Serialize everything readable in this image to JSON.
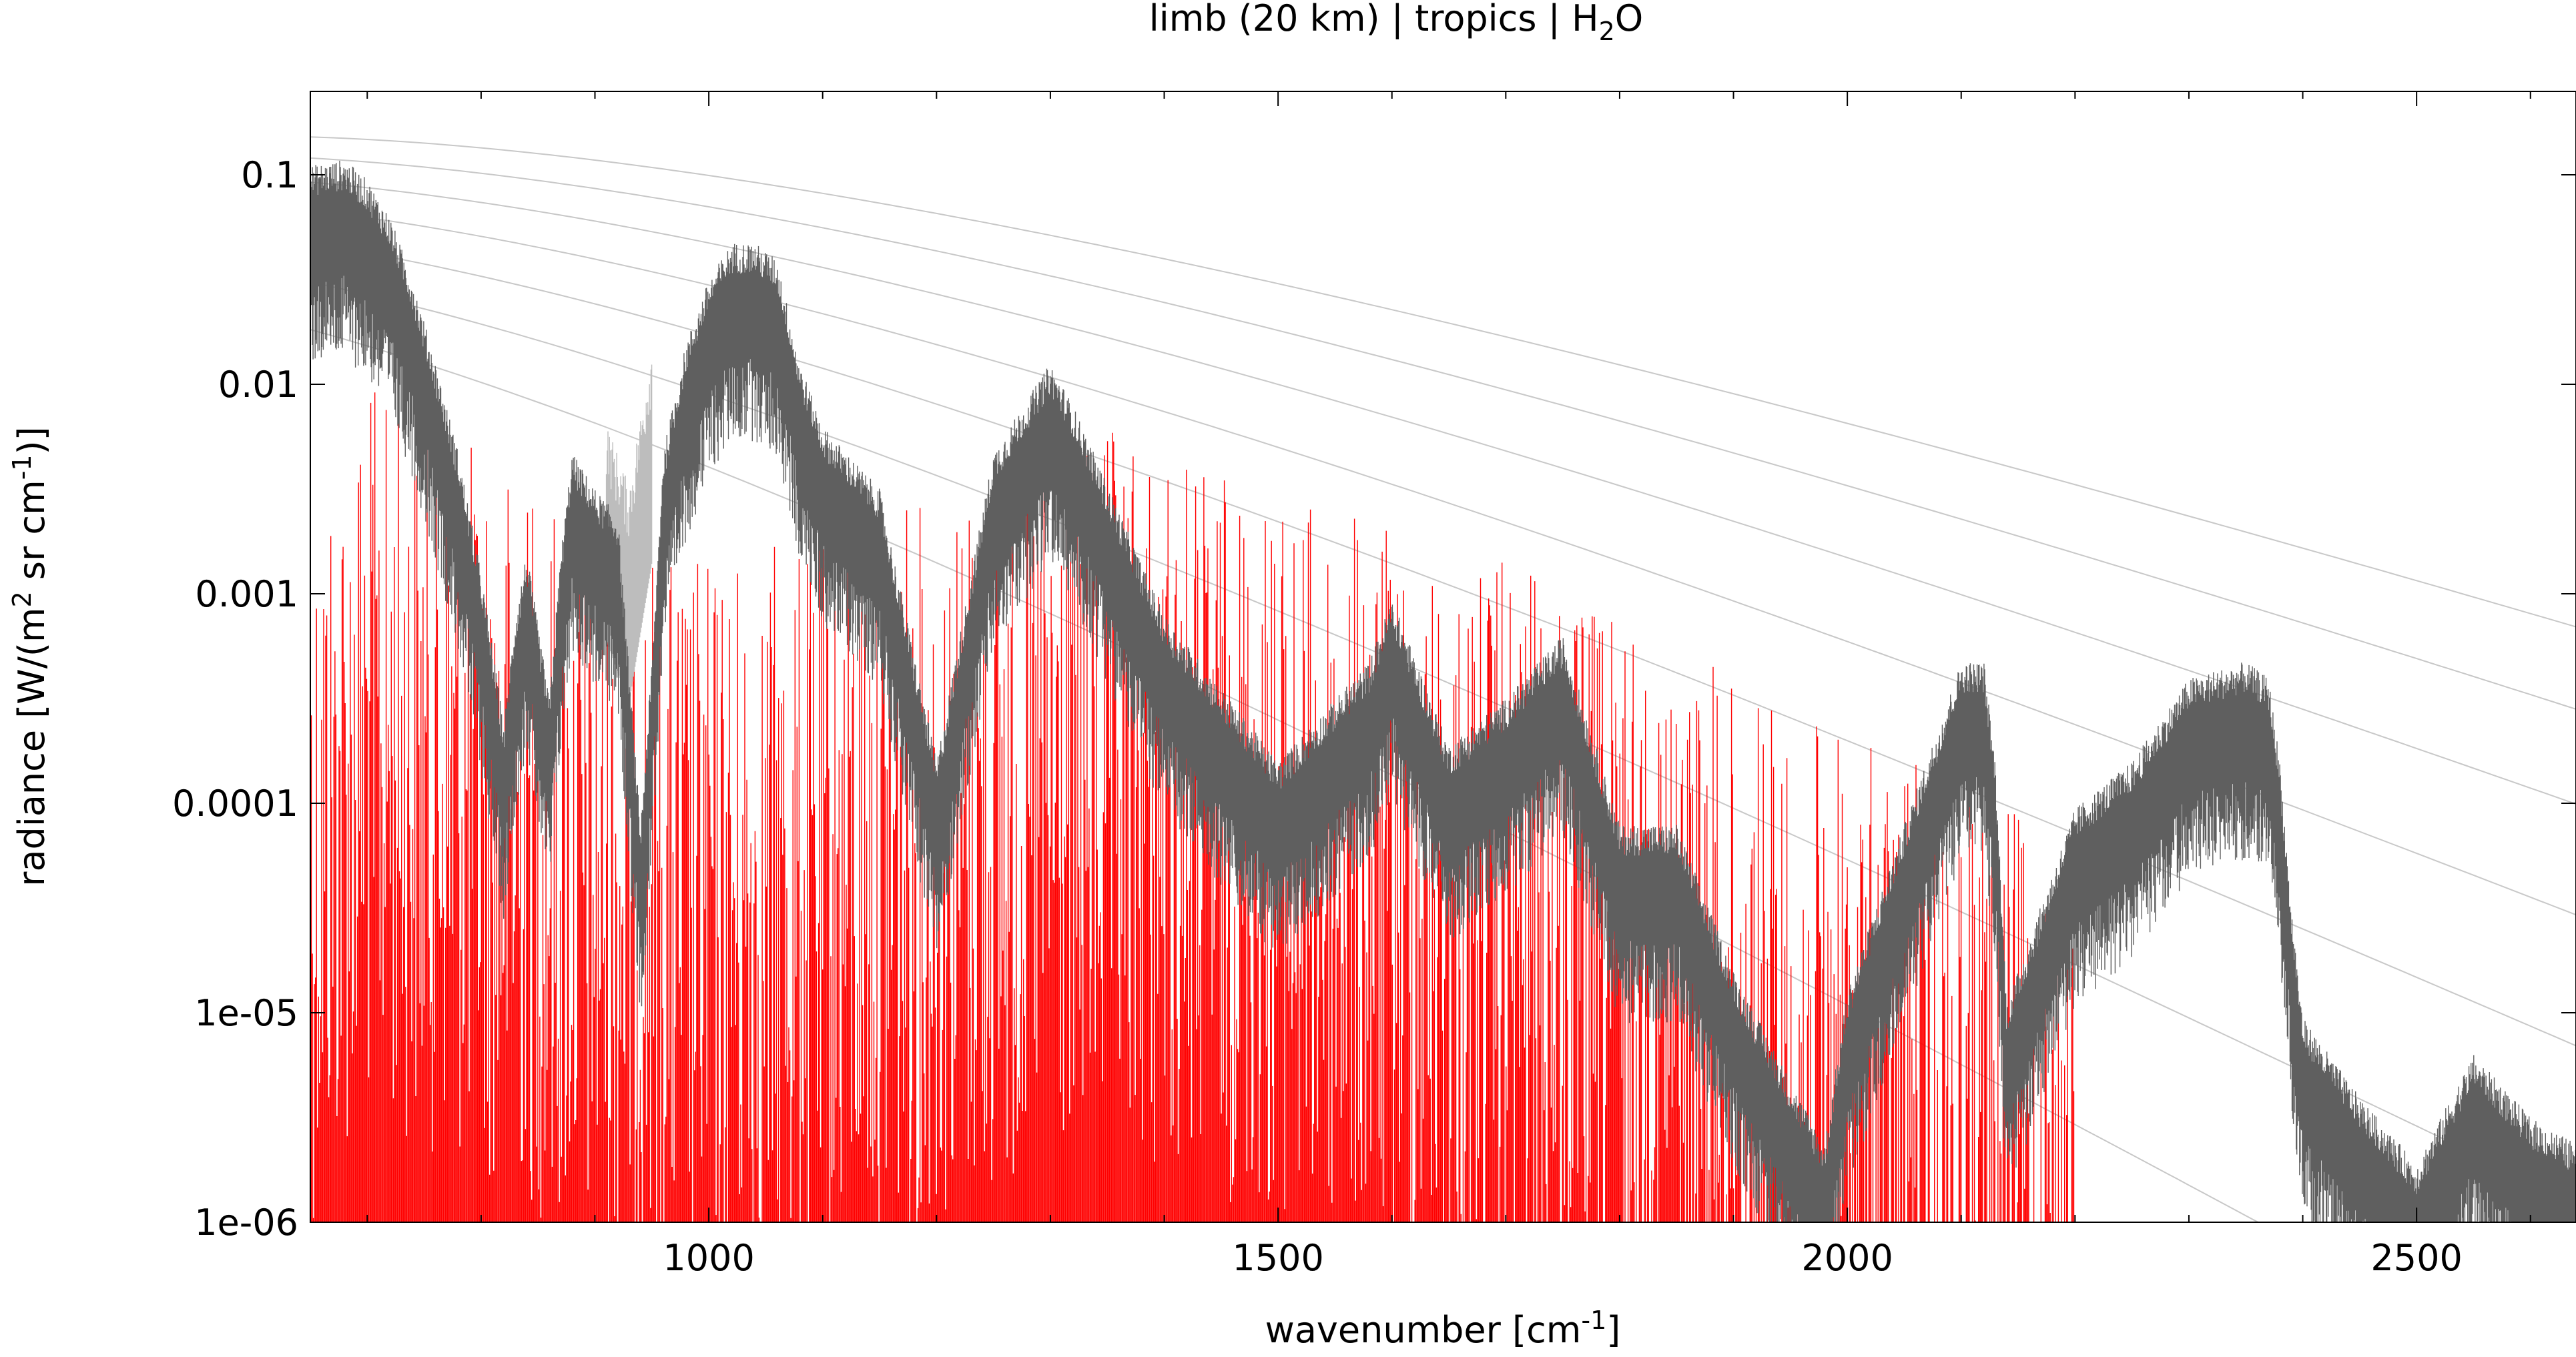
{
  "chart_data": {
    "type": "line",
    "title_main": "limb (20 km) | tropics | H",
    "title_sub": "2",
    "title_end": "O",
    "xlabel_main": "wavenumber [cm",
    "xlabel_sup": "-1",
    "xlabel_end": "]",
    "ylabel_a": "radiance [W/(m",
    "ylabel_sup1": "2",
    "ylabel_b": " sr cm",
    "ylabel_sup2": "-1",
    "ylabel_c": ")]",
    "xlim": [
      650,
      2640
    ],
    "ylim": [
      1e-06,
      0.25
    ],
    "y_scale": "log",
    "grid": false,
    "x_ticks": [
      {
        "value": 1000,
        "label": "1000"
      },
      {
        "value": 1500,
        "label": "1500"
      },
      {
        "value": 2000,
        "label": "2000"
      },
      {
        "value": 2500,
        "label": "2500"
      }
    ],
    "y_ticks": [
      {
        "value": 0.1,
        "label": "0.1"
      },
      {
        "value": 0.01,
        "label": "0.01"
      },
      {
        "value": 0.001,
        "label": "0.001"
      },
      {
        "value": 0.0001,
        "label": "0.0001"
      },
      {
        "value": 1e-05,
        "label": "1e-05"
      },
      {
        "value": 1e-06,
        "label": "1e-06"
      }
    ],
    "series": [
      {
        "role": "spectrum_dark",
        "color": "#5f5f5f",
        "x": [
          650,
          680,
          700,
          720,
          740,
          760,
          780,
          800,
          820,
          830,
          840,
          860,
          870,
          880,
          900,
          920,
          940,
          950,
          960,
          980,
          1000,
          1020,
          1040,
          1060,
          1080,
          1100,
          1150,
          1200,
          1250,
          1300,
          1320,
          1400,
          1500,
          1580,
          1600,
          1650,
          1700,
          1750,
          1800,
          1850,
          1900,
          1950,
          1980,
          2000,
          2050,
          2100,
          2120,
          2130,
          2140,
          2150,
          2200,
          2250,
          2300,
          2350,
          2370,
          2380,
          2390,
          2400,
          2450,
          2500,
          2550,
          2600,
          2640
        ],
        "y": [
          0.07,
          0.075,
          0.06,
          0.04,
          0.02,
          0.008,
          0.003,
          0.0008,
          0.00015,
          0.0005,
          0.001,
          0.0002,
          0.001,
          0.003,
          0.002,
          0.0015,
          5e-05,
          0.0003,
          0.003,
          0.01,
          0.02,
          0.03,
          0.03,
          0.025,
          0.008,
          0.004,
          0.002,
          0.0001,
          0.003,
          0.008,
          0.005,
          0.0005,
          0.0001,
          0.0003,
          0.0006,
          0.00012,
          0.0002,
          0.0004,
          5e-05,
          5e-05,
          1e-05,
          3e-06,
          1.5e-06,
          8e-06,
          5e-05,
          0.0003,
          0.0003,
          0.0001,
          7e-06,
          1e-05,
          6e-05,
          0.0001,
          0.00025,
          0.0003,
          0.00025,
          0.0001,
          2e-05,
          6e-06,
          2.5e-06,
          1.2e-06,
          4e-06,
          2e-06,
          1.5e-06
        ]
      },
      {
        "role": "spectrum_light",
        "color": "#bdbdbd",
        "x": [
          910,
          930,
          950
        ],
        "y": [
          0.003,
          0.0015,
          0.007
        ]
      },
      {
        "role": "spectrum_red",
        "color": "#ff0000",
        "x": [
          650,
          700,
          800,
          900,
          1000,
          1100,
          1200,
          1300,
          1350,
          1400,
          1450,
          1500,
          1550,
          1600,
          1650,
          1700,
          1750,
          1800,
          1900,
          2000,
          2100,
          2200
        ],
        "y": [
          0.003,
          0.01,
          0.005,
          0.002,
          0.0015,
          0.002,
          0.003,
          0.005,
          0.006,
          0.005,
          0.004,
          0.003,
          0.0025,
          0.002,
          0.0015,
          0.0015,
          0.001,
          0.0008,
          0.0004,
          0.0002,
          0.00015,
          5e-05
        ]
      }
    ],
    "reference_curves": {
      "color": "#c8c8c8",
      "temperatures_K": [
        180,
        200,
        220,
        240,
        260,
        280,
        300
      ]
    }
  }
}
